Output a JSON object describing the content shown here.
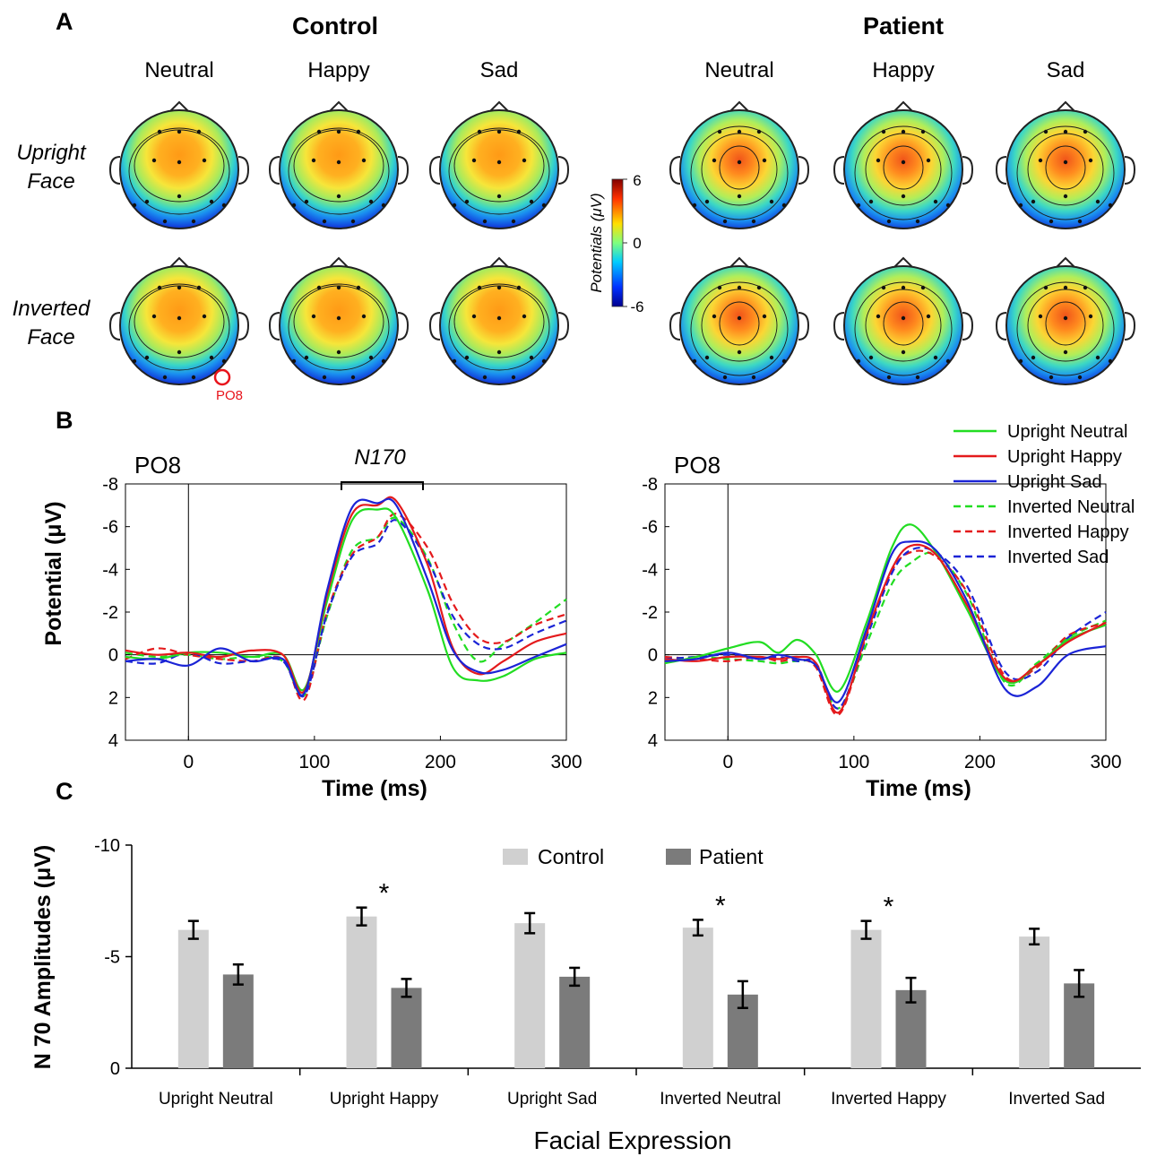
{
  "panels": {
    "a": "A",
    "b": "B",
    "c": "C"
  },
  "topomaps": {
    "groups": [
      {
        "name": "Control",
        "conditions": [
          "Neutral",
          "Happy",
          "Sad"
        ]
      },
      {
        "name": "Patient",
        "conditions": [
          "Neutral",
          "Happy",
          "Sad"
        ]
      }
    ],
    "rows": [
      {
        "line1": "Upright",
        "line2": "Face"
      },
      {
        "line1": "Inverted",
        "line2": "Face"
      }
    ],
    "colorbar": {
      "label": "Potentials (μV)",
      "max": "6",
      "mid": "0",
      "min": "-6"
    },
    "marked_electrode": "PO8",
    "colors": {
      "marker": "#e8141c",
      "contour": "#1a1a1a"
    }
  },
  "erp": {
    "left_title": "PO8",
    "right_title": "PO8",
    "n170_label": "N170",
    "ylabel": "Potential (μV)",
    "xlabel_left": "Time (ms)",
    "xlabel_right": "Time (ms)",
    "yticks": [
      "-8",
      "-6",
      "-4",
      "-2",
      "0",
      "2",
      "4"
    ],
    "xticks": [
      "0",
      "100",
      "200",
      "300"
    ],
    "legend": [
      {
        "name": "Upright Neutral",
        "color": "#22dd22",
        "dash": false
      },
      {
        "name": "Upright Happy",
        "color": "#e41a1c",
        "dash": false
      },
      {
        "name": "Upright Sad",
        "color": "#1b24d6",
        "dash": false
      },
      {
        "name": "Inverted Neutral",
        "color": "#22dd22",
        "dash": true
      },
      {
        "name": "Inverted Happy",
        "color": "#e41a1c",
        "dash": true
      },
      {
        "name": "Inverted Sad",
        "color": "#1b24d6",
        "dash": true
      }
    ]
  },
  "bars": {
    "ylabel": "N 70 Amplitudes (μV)",
    "xlabel": "Facial Expression",
    "yticks": [
      "-10",
      "-5",
      "0"
    ],
    "legend": [
      {
        "name": "Control",
        "color": "#d0d0d0"
      },
      {
        "name": "Patient",
        "color": "#7b7b7b"
      }
    ],
    "star": "*"
  },
  "chart_data": [
    {
      "type": "line",
      "title": "PO8 (Control)",
      "xlabel": "Time (ms)",
      "ylabel": "Potential (μV)",
      "xlim": [
        -50,
        300
      ],
      "ylim": [
        -8,
        4
      ],
      "y_inverted": true,
      "annotation": "N170 (approx. 120-185 ms)",
      "series": [
        {
          "name": "Upright Neutral",
          "x": [
            -50,
            -25,
            0,
            25,
            50,
            75,
            92,
            110,
            130,
            150,
            165,
            190,
            210,
            230,
            250,
            275,
            300
          ],
          "values": [
            0.1,
            0.2,
            -0.1,
            -0.1,
            0.1,
            0,
            1.6,
            -2.5,
            -6.3,
            -6.8,
            -6.4,
            -3,
            0.6,
            1.2,
            1,
            0.2,
            -0.1
          ]
        },
        {
          "name": "Upright Happy",
          "x": [
            -50,
            -25,
            0,
            25,
            50,
            75,
            92,
            110,
            130,
            150,
            165,
            190,
            210,
            230,
            250,
            275,
            300
          ],
          "values": [
            -0.2,
            0,
            -0.1,
            0.1,
            -0.2,
            0,
            1.7,
            -2.8,
            -6.6,
            -7,
            -7.2,
            -4.2,
            -0.3,
            0.9,
            0.3,
            -0.6,
            -1
          ]
        },
        {
          "name": "Upright Sad",
          "x": [
            -50,
            -25,
            0,
            25,
            50,
            75,
            92,
            110,
            130,
            150,
            165,
            190,
            210,
            230,
            250,
            275,
            300
          ],
          "values": [
            0.3,
            0.2,
            0.5,
            -0.3,
            0.3,
            0.2,
            1.8,
            -3,
            -6.9,
            -7.1,
            -7,
            -3.5,
            -0.2,
            0.8,
            0.7,
            0.1,
            -0.5
          ]
        },
        {
          "name": "Inverted Neutral",
          "x": [
            -50,
            -25,
            0,
            25,
            50,
            75,
            92,
            110,
            130,
            150,
            165,
            190,
            210,
            230,
            250,
            275,
            300
          ],
          "values": [
            -0.1,
            0.1,
            0,
            0.2,
            0.1,
            0.3,
            1.9,
            -1.8,
            -4.9,
            -5.5,
            -6.4,
            -4.5,
            -1.5,
            0.3,
            -0.5,
            -1.5,
            -2.6
          ]
        },
        {
          "name": "Inverted Happy",
          "x": [
            -50,
            -25,
            0,
            25,
            50,
            75,
            92,
            110,
            130,
            150,
            165,
            190,
            210,
            230,
            250,
            275,
            300
          ],
          "values": [
            0.2,
            -0.3,
            0,
            0.2,
            0.3,
            0.2,
            2.1,
            -2,
            -4.7,
            -5.5,
            -6.6,
            -5,
            -2.4,
            -0.8,
            -0.6,
            -1.4,
            -1.9
          ]
        },
        {
          "name": "Inverted Sad",
          "x": [
            -50,
            -25,
            0,
            25,
            50,
            75,
            92,
            110,
            130,
            150,
            165,
            190,
            210,
            230,
            250,
            275,
            300
          ],
          "values": [
            0.3,
            0.4,
            -0.1,
            0.4,
            0.3,
            0.3,
            1.9,
            -1.9,
            -4.6,
            -5.2,
            -6.3,
            -4.4,
            -1.8,
            -0.5,
            -0.3,
            -1,
            -1.6
          ]
        }
      ]
    },
    {
      "type": "line",
      "title": "PO8 (Patient)",
      "xlabel": "Time (ms)",
      "ylabel": "Potential (μV)",
      "xlim": [
        -50,
        300
      ],
      "ylim": [
        -8,
        4
      ],
      "y_inverted": true,
      "series": [
        {
          "name": "Upright Neutral",
          "x": [
            -50,
            -25,
            0,
            25,
            40,
            55,
            70,
            88,
            110,
            130,
            145,
            165,
            190,
            220,
            245,
            270,
            300
          ],
          "values": [
            0.4,
            0.1,
            -0.3,
            -0.6,
            -0.1,
            -0.7,
            0,
            1.7,
            -1.5,
            -5,
            -6.1,
            -4.8,
            -2.1,
            1.2,
            0.5,
            -0.7,
            -1.4
          ]
        },
        {
          "name": "Upright Happy",
          "x": [
            -50,
            -25,
            0,
            25,
            40,
            55,
            70,
            88,
            110,
            130,
            145,
            165,
            190,
            220,
            245,
            270,
            300
          ],
          "values": [
            0.2,
            0.3,
            0.1,
            0.1,
            0.2,
            0.1,
            0.4,
            2.7,
            -1,
            -4,
            -5.1,
            -4.7,
            -2.3,
            1.1,
            0.5,
            -0.6,
            -1.5
          ]
        },
        {
          "name": "Upright Sad",
          "x": [
            -50,
            -25,
            0,
            25,
            40,
            55,
            70,
            88,
            110,
            130,
            145,
            165,
            190,
            220,
            245,
            270,
            300
          ],
          "values": [
            0.3,
            0.2,
            -0.1,
            0.2,
            0,
            0.2,
            0.5,
            2.2,
            -1.2,
            -4.7,
            -5.3,
            -4.9,
            -2.5,
            1.6,
            1.5,
            0,
            -0.4
          ]
        },
        {
          "name": "Inverted Neutral",
          "x": [
            -50,
            -25,
            0,
            25,
            40,
            55,
            70,
            88,
            110,
            130,
            145,
            165,
            190,
            220,
            245,
            270,
            300
          ],
          "values": [
            0.3,
            0.1,
            0.2,
            0.3,
            0.4,
            0.3,
            0.5,
            2.5,
            -0.5,
            -3.3,
            -4.3,
            -4.7,
            -2.8,
            1.3,
            0.4,
            -0.8,
            -1.6
          ]
        },
        {
          "name": "Inverted Happy",
          "x": [
            -50,
            -25,
            0,
            25,
            40,
            55,
            70,
            88,
            110,
            130,
            145,
            165,
            190,
            220,
            245,
            270,
            300
          ],
          "values": [
            0.1,
            0.2,
            0.3,
            0.1,
            0.3,
            0.2,
            0.6,
            2.8,
            -0.9,
            -3.9,
            -4.8,
            -4.6,
            -2.9,
            1,
            0.6,
            -0.9,
            -1.5
          ]
        },
        {
          "name": "Inverted Sad",
          "x": [
            -50,
            -25,
            0,
            25,
            40,
            55,
            70,
            88,
            110,
            130,
            145,
            165,
            190,
            220,
            245,
            270,
            300
          ],
          "values": [
            0.2,
            0.1,
            0,
            0.2,
            0.1,
            0.3,
            0.4,
            2.5,
            -0.8,
            -3.8,
            -4.9,
            -4.8,
            -3.2,
            0.8,
            0.8,
            -0.8,
            -2
          ]
        }
      ]
    },
    {
      "type": "bar",
      "title": "",
      "xlabel": "Facial Expression",
      "ylabel": "N 70 Amplitudes (μV)",
      "ylim": [
        0,
        -10
      ],
      "y_inverted": true,
      "categories": [
        "Upright Neutral",
        "Upright Happy",
        "Upright Sad",
        "Inverted Neutral",
        "Inverted Happy",
        "Inverted Sad"
      ],
      "series": [
        {
          "name": "Control",
          "values": [
            -6.2,
            -6.8,
            -6.5,
            -6.3,
            -6.2,
            -5.9
          ],
          "errors": [
            0.4,
            0.4,
            0.45,
            0.35,
            0.4,
            0.35
          ]
        },
        {
          "name": "Patient",
          "values": [
            -4.2,
            -3.6,
            -4.1,
            -3.3,
            -3.5,
            -3.8
          ],
          "errors": [
            0.45,
            0.4,
            0.4,
            0.6,
            0.55,
            0.6
          ]
        }
      ],
      "significant": [
        false,
        true,
        false,
        true,
        true,
        false
      ]
    }
  ]
}
